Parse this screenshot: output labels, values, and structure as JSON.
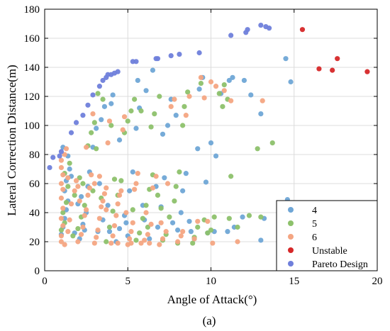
{
  "chart_data": {
    "type": "scatter",
    "xlabel": "Angle of Attack(°)",
    "ylabel": "Lateral Correction Distance(m)",
    "subfigure_label": "(a)",
    "xlim": [
      0,
      20
    ],
    "ylim": [
      0,
      180
    ],
    "x_ticks": [
      0,
      5,
      10,
      15,
      20
    ],
    "y_ticks": [
      0,
      20,
      40,
      60,
      80,
      100,
      120,
      140,
      160,
      180
    ],
    "grid": true,
    "legend_position": "bottom-right",
    "series": [
      {
        "name": "4",
        "color": "#6fa6d6",
        "points": [
          [
            1.0,
            25
          ],
          [
            1.1,
            30
          ],
          [
            1.2,
            36
          ],
          [
            1.3,
            42
          ],
          [
            1.4,
            48
          ],
          [
            1.2,
            55
          ],
          [
            1.3,
            62
          ],
          [
            1.5,
            70
          ],
          [
            1.4,
            79
          ],
          [
            1.8,
            26
          ],
          [
            2.1,
            22
          ],
          [
            2.3,
            32
          ],
          [
            2.5,
            40
          ],
          [
            2.2,
            51
          ],
          [
            2.6,
            58
          ],
          [
            2.9,
            85
          ],
          [
            3.1,
            98
          ],
          [
            3.4,
            104
          ],
          [
            3.6,
            113
          ],
          [
            4.0,
            115
          ],
          [
            4.1,
            121
          ],
          [
            3.2,
            27
          ],
          [
            3.5,
            35
          ],
          [
            3.8,
            45
          ],
          [
            4.3,
            20
          ],
          [
            4.5,
            29
          ],
          [
            4.8,
            38
          ],
          [
            5.1,
            55
          ],
          [
            5.3,
            68
          ],
          [
            5.5,
            98
          ],
          [
            5.7,
            112
          ],
          [
            5.6,
            131
          ],
          [
            6.1,
            124
          ],
          [
            6.5,
            138
          ],
          [
            6.3,
            22
          ],
          [
            6.8,
            30
          ],
          [
            7.0,
            44
          ],
          [
            7.2,
            64
          ],
          [
            7.1,
            94
          ],
          [
            7.4,
            100
          ],
          [
            7.6,
            118
          ],
          [
            7.9,
            107
          ],
          [
            8.0,
            28
          ],
          [
            8.2,
            40
          ],
          [
            8.3,
            55
          ],
          [
            8.5,
            67
          ],
          [
            8.8,
            27
          ],
          [
            9.0,
            22
          ],
          [
            9.2,
            84
          ],
          [
            9.3,
            125
          ],
          [
            9.5,
            133
          ],
          [
            9.8,
            26
          ],
          [
            10.0,
            88
          ],
          [
            10.3,
            79
          ],
          [
            10.2,
            27
          ],
          [
            10.6,
            122
          ],
          [
            11.0,
            27
          ],
          [
            11.1,
            131
          ],
          [
            11.4,
            30
          ],
          [
            11.3,
            133
          ],
          [
            11.9,
            37
          ],
          [
            12.0,
            131
          ],
          [
            12.4,
            121
          ],
          [
            13.0,
            21
          ],
          [
            13.2,
            36
          ],
          [
            13.0,
            108
          ],
          [
            14.5,
            146
          ],
          [
            14.8,
            130
          ],
          [
            14.6,
            49
          ],
          [
            2.0,
            46
          ],
          [
            2.7,
            68
          ],
          [
            3.3,
            60
          ],
          [
            4.5,
            90
          ],
          [
            5.9,
            45
          ],
          [
            6.7,
            58
          ],
          [
            1.6,
            65
          ],
          [
            2.4,
            28
          ],
          [
            3.9,
            27
          ],
          [
            4.9,
            33
          ],
          [
            6.0,
            35
          ],
          [
            7.7,
            33
          ],
          [
            8.7,
            34
          ],
          [
            1.1,
            85
          ],
          [
            5.0,
            24
          ],
          [
            9.7,
            61
          ]
        ]
      },
      {
        "name": "5",
        "color": "#8dc16b",
        "points": [
          [
            1.0,
            28
          ],
          [
            1.2,
            33
          ],
          [
            1.1,
            40
          ],
          [
            1.3,
            47
          ],
          [
            1.4,
            58
          ],
          [
            1.2,
            67
          ],
          [
            1.5,
            74
          ],
          [
            1.7,
            24
          ],
          [
            2.0,
            29
          ],
          [
            2.2,
            37
          ],
          [
            2.4,
            45
          ],
          [
            2.3,
            60
          ],
          [
            2.6,
            86
          ],
          [
            2.8,
            95
          ],
          [
            3.0,
            102
          ],
          [
            3.2,
            122
          ],
          [
            3.5,
            118
          ],
          [
            3.7,
            20
          ],
          [
            3.9,
            30
          ],
          [
            4.1,
            41
          ],
          [
            4.4,
            52
          ],
          [
            4.6,
            62
          ],
          [
            4.8,
            95
          ],
          [
            5.0,
            103
          ],
          [
            5.2,
            110
          ],
          [
            5.4,
            118
          ],
          [
            5.5,
            21
          ],
          [
            5.7,
            26
          ],
          [
            5.9,
            36
          ],
          [
            6.1,
            45
          ],
          [
            6.3,
            56
          ],
          [
            6.5,
            66
          ],
          [
            6.4,
            99
          ],
          [
            6.6,
            108
          ],
          [
            6.9,
            120
          ],
          [
            7.1,
            21
          ],
          [
            7.3,
            25
          ],
          [
            7.5,
            37
          ],
          [
            7.8,
            48
          ],
          [
            7.9,
            58
          ],
          [
            8.1,
            68
          ],
          [
            8.3,
            100
          ],
          [
            8.4,
            113
          ],
          [
            8.6,
            123
          ],
          [
            8.9,
            19
          ],
          [
            9.0,
            23
          ],
          [
            9.2,
            30
          ],
          [
            9.4,
            129
          ],
          [
            9.6,
            35
          ],
          [
            9.8,
            26
          ],
          [
            10.0,
            28
          ],
          [
            10.2,
            37
          ],
          [
            10.5,
            122
          ],
          [
            10.7,
            113
          ],
          [
            10.8,
            128
          ],
          [
            11.0,
            118
          ],
          [
            11.2,
            65
          ],
          [
            11.1,
            36
          ],
          [
            11.6,
            30
          ],
          [
            12.3,
            38
          ],
          [
            12.8,
            84
          ],
          [
            13.0,
            37
          ],
          [
            13.7,
            88
          ],
          [
            1.8,
            52
          ],
          [
            2.9,
            55
          ],
          [
            3.4,
            50
          ],
          [
            4.2,
            63
          ],
          [
            5.3,
            42
          ],
          [
            6.2,
            30
          ],
          [
            7.0,
            43
          ],
          [
            3.1,
            84
          ],
          [
            4.0,
            100
          ],
          [
            2.1,
            64
          ],
          [
            5.8,
            110
          ],
          [
            6.8,
            52
          ],
          [
            8.0,
            19
          ]
        ]
      },
      {
        "name": "6",
        "color": "#f4a582",
        "points": [
          [
            1.0,
            20
          ],
          [
            1.0,
            24
          ],
          [
            1.1,
            31
          ],
          [
            1.0,
            36
          ],
          [
            1.1,
            43
          ],
          [
            1.0,
            50
          ],
          [
            1.1,
            56
          ],
          [
            1.0,
            60
          ],
          [
            1.1,
            66
          ],
          [
            1.0,
            71
          ],
          [
            1.0,
            76
          ],
          [
            1.2,
            80
          ],
          [
            1.3,
            84
          ],
          [
            1.4,
            27
          ],
          [
            1.5,
            35
          ],
          [
            1.6,
            46
          ],
          [
            1.8,
            55
          ],
          [
            1.9,
            62
          ],
          [
            2.0,
            20
          ],
          [
            2.2,
            25
          ],
          [
            2.3,
            30
          ],
          [
            2.4,
            38
          ],
          [
            2.5,
            42
          ],
          [
            2.6,
            52
          ],
          [
            2.7,
            57
          ],
          [
            2.8,
            66
          ],
          [
            2.9,
            108
          ],
          [
            3.0,
            19
          ],
          [
            3.1,
            23
          ],
          [
            3.2,
            28
          ],
          [
            3.3,
            36
          ],
          [
            3.4,
            44
          ],
          [
            3.5,
            48
          ],
          [
            3.6,
            53
          ],
          [
            3.7,
            57
          ],
          [
            3.8,
            88
          ],
          [
            3.9,
            103
          ],
          [
            4.0,
            19
          ],
          [
            4.1,
            24
          ],
          [
            4.2,
            31
          ],
          [
            4.3,
            38
          ],
          [
            4.4,
            46
          ],
          [
            4.5,
            52
          ],
          [
            4.6,
            55
          ],
          [
            4.7,
            97
          ],
          [
            4.8,
            106
          ],
          [
            5.0,
            18
          ],
          [
            5.1,
            22
          ],
          [
            5.2,
            27
          ],
          [
            5.3,
            33
          ],
          [
            5.4,
            56
          ],
          [
            5.5,
            60
          ],
          [
            5.6,
            67
          ],
          [
            5.8,
            19
          ],
          [
            6.0,
            21
          ],
          [
            6.2,
            25
          ],
          [
            6.4,
            32
          ],
          [
            6.5,
            57
          ],
          [
            6.7,
            65
          ],
          [
            6.9,
            18
          ],
          [
            7.1,
            22
          ],
          [
            7.3,
            27
          ],
          [
            7.4,
            60
          ],
          [
            7.6,
            113
          ],
          [
            7.8,
            118
          ],
          [
            8.0,
            20
          ],
          [
            8.2,
            24
          ],
          [
            8.5,
            107
          ],
          [
            8.7,
            120
          ],
          [
            9.0,
            22
          ],
          [
            9.2,
            34
          ],
          [
            9.4,
            133
          ],
          [
            9.6,
            119
          ],
          [
            10.0,
            130
          ],
          [
            10.1,
            19
          ],
          [
            10.3,
            127
          ],
          [
            10.8,
            124
          ],
          [
            11.2,
            117
          ],
          [
            11.6,
            20
          ],
          [
            13.1,
            117
          ],
          [
            1.2,
            18
          ],
          [
            2.1,
            48
          ],
          [
            3.3,
            65
          ],
          [
            4.9,
            40
          ],
          [
            6.1,
            40
          ],
          [
            7.0,
            33
          ],
          [
            8.3,
            27
          ],
          [
            9.8,
            34
          ],
          [
            1.4,
            64
          ],
          [
            2.5,
            85
          ],
          [
            3.0,
            60
          ],
          [
            4.4,
            19
          ],
          [
            5.2,
            19
          ],
          [
            6.3,
            19
          ],
          [
            2.0,
            58
          ],
          [
            3.7,
            42
          ]
        ]
      },
      {
        "name": "Unstable",
        "color": "#d62728",
        "points": [
          [
            15.5,
            166
          ],
          [
            16.5,
            139
          ],
          [
            17.3,
            138
          ],
          [
            17.6,
            146
          ],
          [
            19.4,
            137
          ]
        ]
      },
      {
        "name": "Pareto Design",
        "color": "#6f7fdb",
        "points": [
          [
            0.3,
            71
          ],
          [
            0.5,
            78
          ],
          [
            0.9,
            79
          ],
          [
            1.0,
            82
          ],
          [
            1.6,
            95
          ],
          [
            1.9,
            102
          ],
          [
            2.3,
            107
          ],
          [
            2.6,
            114
          ],
          [
            2.9,
            121
          ],
          [
            3.3,
            127
          ],
          [
            3.5,
            131
          ],
          [
            3.7,
            133
          ],
          [
            3.8,
            135
          ],
          [
            4.0,
            135
          ],
          [
            4.2,
            136
          ],
          [
            4.4,
            137
          ],
          [
            5.3,
            144
          ],
          [
            5.5,
            144
          ],
          [
            6.7,
            146
          ],
          [
            6.8,
            146
          ],
          [
            7.6,
            148
          ],
          [
            8.1,
            149
          ],
          [
            9.3,
            150
          ],
          [
            11.2,
            162
          ],
          [
            12.1,
            164
          ],
          [
            12.2,
            166
          ],
          [
            13.0,
            169
          ],
          [
            13.3,
            168
          ],
          [
            13.5,
            167
          ]
        ]
      }
    ]
  }
}
